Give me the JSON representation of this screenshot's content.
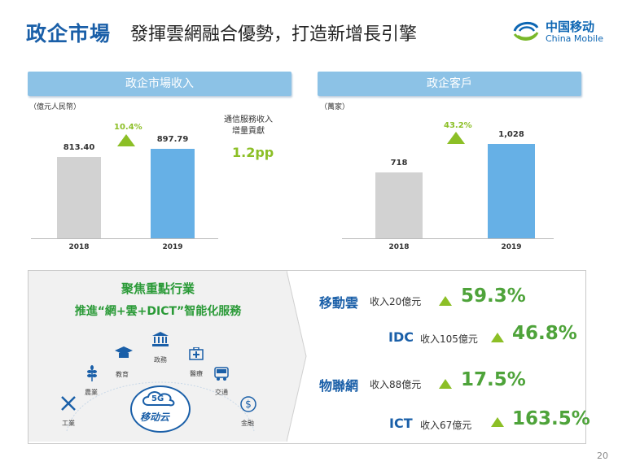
{
  "header": {
    "title": "政企市場",
    "subtitle": "發揮雲網融合優勢，打造新增長引擎",
    "logo_cn": "中国移动",
    "logo_en": "China Mobile"
  },
  "colors": {
    "blue": "#1a5fa8",
    "bar_grey": "#d2d2d2",
    "bar_blue": "#66b0e6",
    "green": "#8cbf26",
    "header_bg": "#8cc2e6"
  },
  "chart_data": [
    {
      "type": "bar",
      "title": "政企市場收入",
      "unit": "（億元人民幣）",
      "categories": [
        "2018",
        "2019"
      ],
      "values": [
        813.4,
        897.79
      ],
      "value_labels": [
        "813.40",
        "897.79"
      ],
      "growth": "10.4%",
      "note_line1": "通信服務收入",
      "note_line2": "增量貢獻",
      "note_value": "1.2pp"
    },
    {
      "type": "bar",
      "title": "政企客戶",
      "unit": "（萬家）",
      "categories": [
        "2018",
        "2019"
      ],
      "values": [
        718,
        1028
      ],
      "value_labels": [
        "718",
        "1,028"
      ],
      "growth": "43.2%"
    }
  ],
  "focus": {
    "line1": "聚焦重點行業",
    "line2": "推進“網+雲+DICT”智能化服務",
    "center_badge": "移动云",
    "center_5g": "5G",
    "industries": [
      "政務",
      "教育",
      "醫療",
      "農業",
      "交通",
      "工業",
      "金融"
    ]
  },
  "metrics": [
    {
      "name": "移動雲",
      "desc": "收入20億元",
      "pct": "59.3%"
    },
    {
      "name": "IDC",
      "desc": "收入105億元",
      "pct": "46.8%"
    },
    {
      "name": "物聯網",
      "desc": "收入88億元",
      "pct": "17.5%"
    },
    {
      "name": "ICT",
      "desc": "收入67億元",
      "pct": "163.5%"
    }
  ],
  "page_number": "20"
}
